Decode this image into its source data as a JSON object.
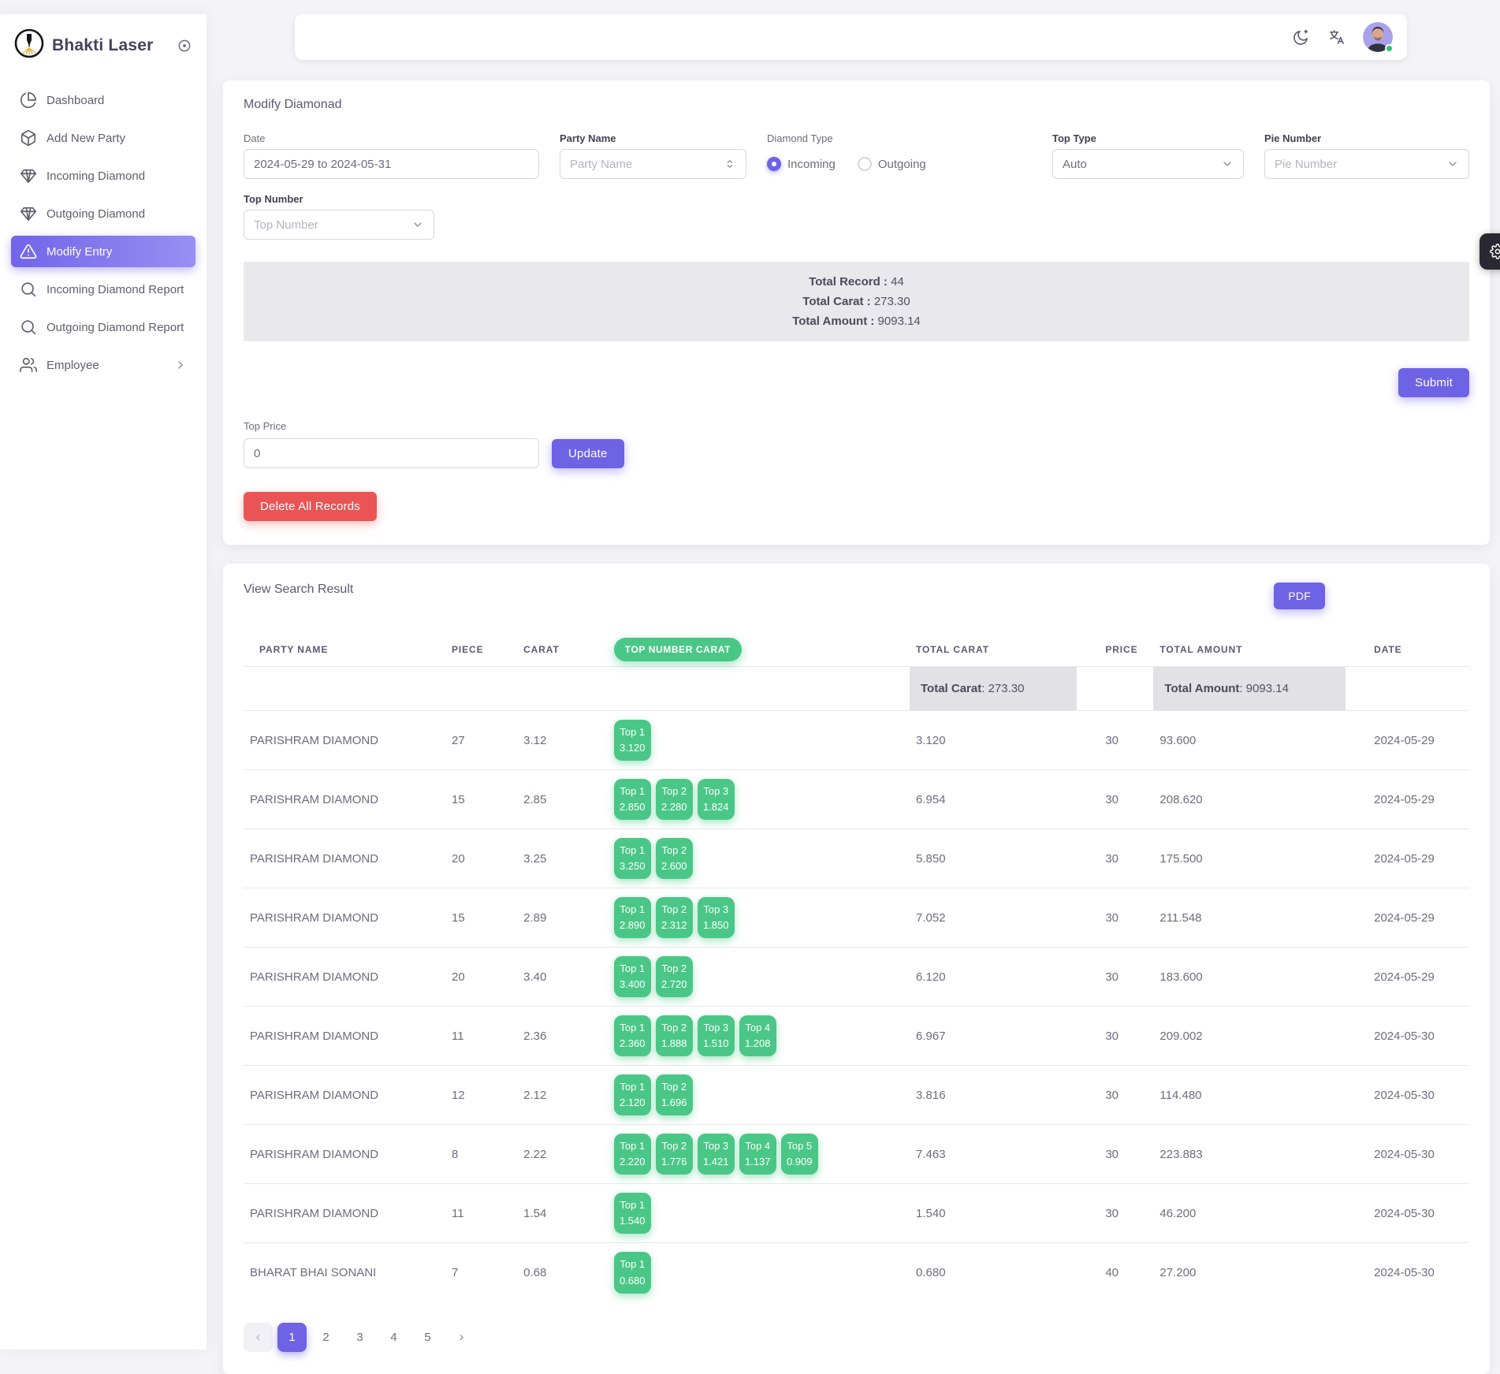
{
  "brand": {
    "name": "Bhakti Laser"
  },
  "sidebar": {
    "items": [
      {
        "label": "Dashboard"
      },
      {
        "label": "Add New Party"
      },
      {
        "label": "Incoming Diamond"
      },
      {
        "label": "Outgoing Diamond"
      },
      {
        "label": "Modify Entry"
      },
      {
        "label": "Incoming Diamond Report"
      },
      {
        "label": "Outgoing Diamond Report"
      },
      {
        "label": "Employee"
      }
    ]
  },
  "modify_card": {
    "title": "Modify Diamonad",
    "date_label": "Date",
    "date_value": "2024-05-29 to 2024-05-31",
    "party_label": "Party Name",
    "party_placeholder": "Party Name",
    "diamond_type_label": "Diamond Type",
    "incoming_label": "Incoming",
    "outgoing_label": "Outgoing",
    "diamond_type_selected": "Incoming",
    "top_type_label": "Top Type",
    "top_type_value": "Auto",
    "pie_label": "Pie Number",
    "pie_placeholder": "Pie Number",
    "top_number_label": "Top Number",
    "top_number_placeholder": "Top Number",
    "summary": {
      "record_label": "Total Record :",
      "record_value": " 44",
      "carat_label": "Total Carat :",
      "carat_value": " 273.30",
      "amount_label": "Total Amount :",
      "amount_value": " 9093.14"
    },
    "submit_label": "Submit",
    "top_price_label": "Top Price",
    "top_price_value": "0",
    "update_label": "Update",
    "delete_label": "Delete All Records"
  },
  "results_card": {
    "title": "View Search Result",
    "pdf_label": "PDF",
    "table": {
      "headers": [
        "PARTY NAME",
        "PIECE",
        "CARAT",
        "TOP NUMBER CARAT",
        "TOTAL CARAT",
        "PRICE",
        "TOTAL AMOUNT",
        "DATE"
      ],
      "total_row": {
        "carat_label": "Total Carat",
        "carat_value": " : 273.30",
        "amount_label": "Total Amount",
        "amount_value": " : 9093.14"
      },
      "rows": [
        {
          "party": "PARISHRAM DIAMOND",
          "piece": "27",
          "carat": "3.12",
          "tops": [
            {
              "label": "Top 1",
              "value": "3.120"
            }
          ],
          "total_carat": "3.120",
          "price": "30",
          "total_amount": "93.600",
          "date": "2024-05-29"
        },
        {
          "party": "PARISHRAM DIAMOND",
          "piece": "15",
          "carat": "2.85",
          "tops": [
            {
              "label": "Top 1",
              "value": "2.850"
            },
            {
              "label": "Top 2",
              "value": "2.280"
            },
            {
              "label": "Top 3",
              "value": "1.824"
            }
          ],
          "total_carat": "6.954",
          "price": "30",
          "total_amount": "208.620",
          "date": "2024-05-29"
        },
        {
          "party": "PARISHRAM DIAMOND",
          "piece": "20",
          "carat": "3.25",
          "tops": [
            {
              "label": "Top 1",
              "value": "3.250"
            },
            {
              "label": "Top 2",
              "value": "2.600"
            }
          ],
          "total_carat": "5.850",
          "price": "30",
          "total_amount": "175.500",
          "date": "2024-05-29"
        },
        {
          "party": "PARISHRAM DIAMOND",
          "piece": "15",
          "carat": "2.89",
          "tops": [
            {
              "label": "Top 1",
              "value": "2.890"
            },
            {
              "label": "Top 2",
              "value": "2.312"
            },
            {
              "label": "Top 3",
              "value": "1.850"
            }
          ],
          "total_carat": "7.052",
          "price": "30",
          "total_amount": "211.548",
          "date": "2024-05-29"
        },
        {
          "party": "PARISHRAM DIAMOND",
          "piece": "20",
          "carat": "3.40",
          "tops": [
            {
              "label": "Top 1",
              "value": "3.400"
            },
            {
              "label": "Top 2",
              "value": "2.720"
            }
          ],
          "total_carat": "6.120",
          "price": "30",
          "total_amount": "183.600",
          "date": "2024-05-29"
        },
        {
          "party": "PARISHRAM DIAMOND",
          "piece": "11",
          "carat": "2.36",
          "tops": [
            {
              "label": "Top 1",
              "value": "2.360"
            },
            {
              "label": "Top 2",
              "value": "1.888"
            },
            {
              "label": "Top 3",
              "value": "1.510"
            },
            {
              "label": "Top 4",
              "value": "1.208"
            }
          ],
          "total_carat": "6.967",
          "price": "30",
          "total_amount": "209.002",
          "date": "2024-05-30"
        },
        {
          "party": "PARISHRAM DIAMOND",
          "piece": "12",
          "carat": "2.12",
          "tops": [
            {
              "label": "Top 1",
              "value": "2.120"
            },
            {
              "label": "Top 2",
              "value": "1.696"
            }
          ],
          "total_carat": "3.816",
          "price": "30",
          "total_amount": "114.480",
          "date": "2024-05-30"
        },
        {
          "party": "PARISHRAM DIAMOND",
          "piece": "8",
          "carat": "2.22",
          "tops": [
            {
              "label": "Top 1",
              "value": "2.220"
            },
            {
              "label": "Top 2",
              "value": "1.776"
            },
            {
              "label": "Top 3",
              "value": "1.421"
            },
            {
              "label": "Top 4",
              "value": "1.137"
            },
            {
              "label": "Top 5",
              "value": "0.909"
            }
          ],
          "total_carat": "7.463",
          "price": "30",
          "total_amount": "223.883",
          "date": "2024-05-30"
        },
        {
          "party": "PARISHRAM DIAMOND",
          "piece": "11",
          "carat": "1.54",
          "tops": [
            {
              "label": "Top 1",
              "value": "1.540"
            }
          ],
          "total_carat": "1.540",
          "price": "30",
          "total_amount": "46.200",
          "date": "2024-05-30"
        },
        {
          "party": "BHARAT BHAI SONANI",
          "piece": "7",
          "carat": "0.68",
          "tops": [
            {
              "label": "Top 1",
              "value": "0.680"
            }
          ],
          "total_carat": "0.680",
          "price": "40",
          "total_amount": "27.200",
          "date": "2024-05-30"
        }
      ]
    },
    "pagination": {
      "prev": "‹",
      "pages": [
        "1",
        "2",
        "3",
        "4",
        "5"
      ],
      "next": "›",
      "active_page": "1"
    }
  },
  "colors": {
    "primary": "#6e62e5",
    "success": "#4ac786",
    "danger": "#ea5455",
    "online": "#28c76f"
  }
}
